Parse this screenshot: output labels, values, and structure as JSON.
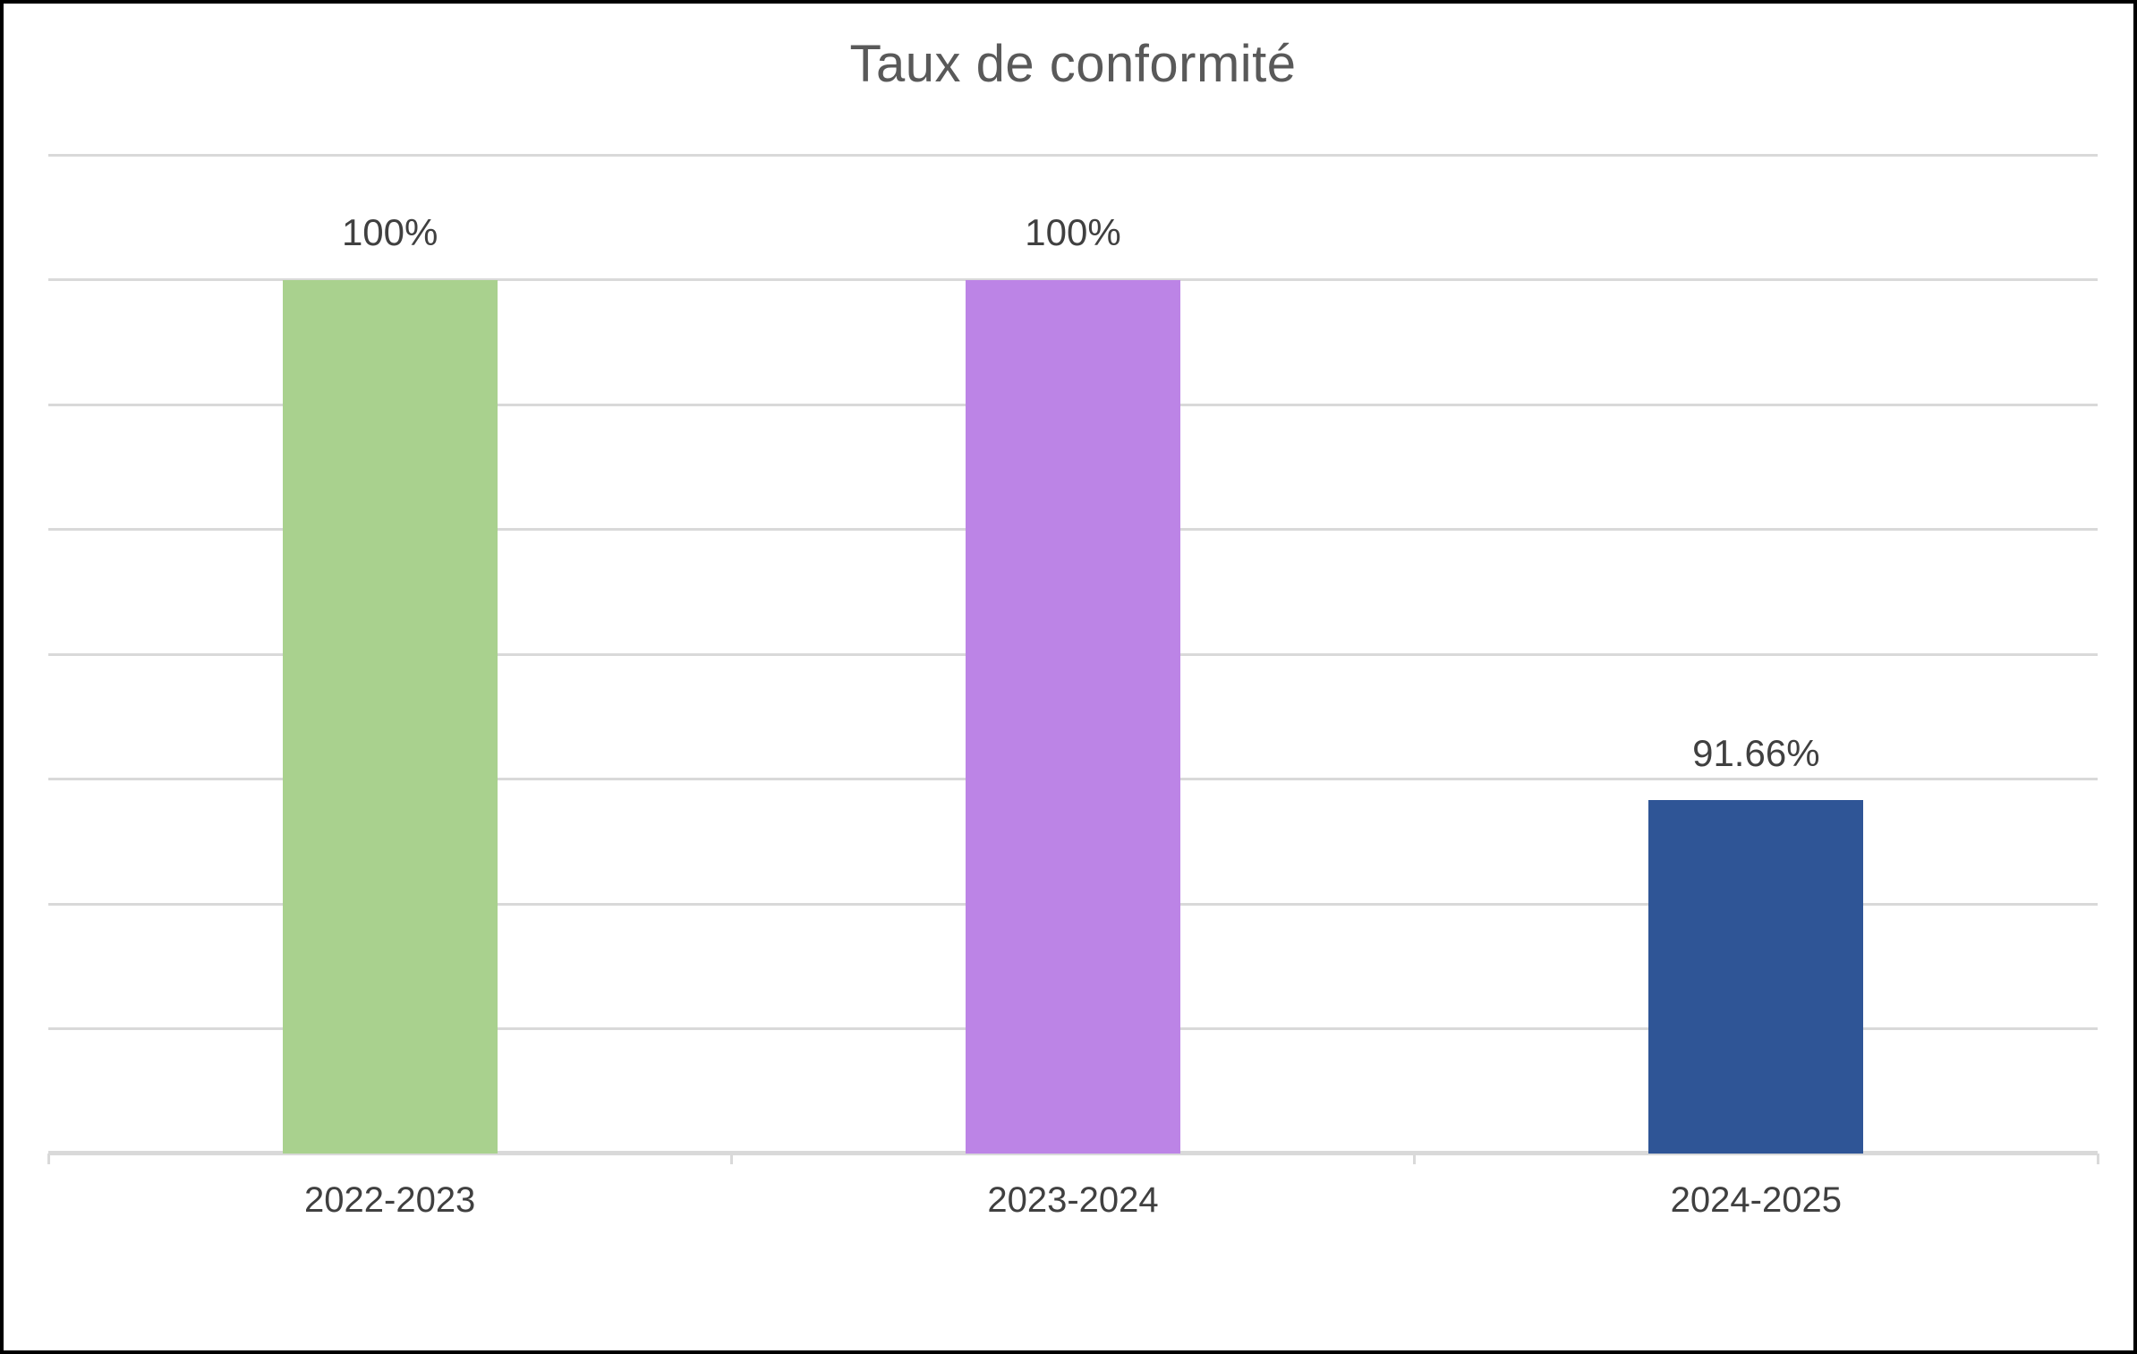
{
  "chart_data": {
    "type": "bar",
    "title": "Taux de conformité",
    "categories": [
      "2022-2023",
      "2023-2024",
      "2024-2025"
    ],
    "values": [
      100,
      100,
      91.66
    ],
    "data_labels": [
      "100%",
      "100%",
      "91.66%"
    ],
    "bar_colors": [
      "#A9D18E",
      "#BC84E6",
      "#2F5596"
    ],
    "ylim": [
      86,
      102
    ],
    "gridline_step": 2,
    "grid": true,
    "legend": "none",
    "y_axis_labels_visible": false,
    "xlabel": "",
    "ylabel": ""
  },
  "colors": {
    "background": "#FFFFFF",
    "border": "#000000",
    "gridline": "#D9D9D9",
    "axis_line": "#D9D9D9",
    "title_text": "#595959",
    "data_label_text": "#404040",
    "axis_label_text": "#404040"
  }
}
